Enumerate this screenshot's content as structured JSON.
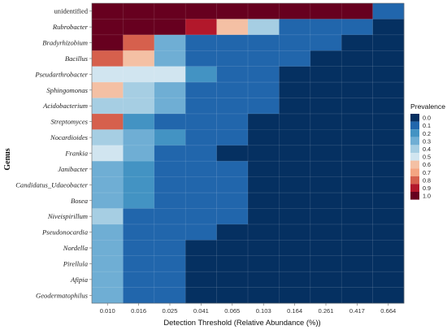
{
  "chart_data": {
    "type": "heatmap",
    "title": "",
    "xlabel": "Detection Threshold (Relative Abundance (%))",
    "ylabel": "Genus",
    "x_categories": [
      "0.010",
      "0.016",
      "0.025",
      "0.041",
      "0.065",
      "0.103",
      "0.164",
      "0.261",
      "0.417",
      "0.664"
    ],
    "y_categories": [
      "unidentified",
      "Rubrobacter",
      "Bradyrhizobium",
      "Bacillus",
      "Pseudarthrobacter",
      "Sphingomonas",
      "Acidobacterium",
      "Streptomyces",
      "Nocardioides",
      "Frankia",
      "Janibacter",
      "Candidatus_Udaeobacter",
      "Bosea",
      "Niveispirillum",
      "Pseudonocardia",
      "Nordella",
      "Pirellula",
      "Afipia",
      "Geodermatophilus"
    ],
    "values": [
      [
        1.0,
        1.0,
        1.0,
        1.0,
        1.0,
        1.0,
        1.0,
        1.0,
        1.0,
        0.05
      ],
      [
        1.0,
        1.0,
        1.0,
        0.85,
        0.6,
        0.35,
        0.1,
        0.05,
        0.05,
        0.0
      ],
      [
        1.0,
        0.75,
        0.3,
        0.05,
        0.05,
        0.05,
        0.05,
        0.05,
        0.0,
        0.0
      ],
      [
        0.75,
        0.6,
        0.3,
        0.1,
        0.05,
        0.05,
        0.05,
        0.0,
        0.0,
        0.0
      ],
      [
        0.5,
        0.45,
        0.45,
        0.15,
        0.05,
        0.05,
        0.0,
        0.0,
        0.0,
        0.0
      ],
      [
        0.6,
        0.4,
        0.25,
        0.05,
        0.05,
        0.05,
        0.0,
        0.0,
        0.0,
        0.0
      ],
      [
        0.4,
        0.4,
        0.3,
        0.1,
        0.05,
        0.05,
        0.0,
        0.0,
        0.0,
        0.0
      ],
      [
        0.75,
        0.15,
        0.05,
        0.05,
        0.05,
        0.0,
        0.0,
        0.0,
        0.0,
        0.0
      ],
      [
        0.35,
        0.3,
        0.15,
        0.05,
        0.05,
        0.0,
        0.0,
        0.0,
        0.0,
        0.0
      ],
      [
        0.5,
        0.25,
        0.05,
        0.05,
        0.0,
        0.0,
        0.0,
        0.0,
        0.0,
        0.0
      ],
      [
        0.25,
        0.2,
        0.1,
        0.05,
        0.05,
        0.0,
        0.0,
        0.0,
        0.0,
        0.0
      ],
      [
        0.25,
        0.2,
        0.1,
        0.05,
        0.05,
        0.0,
        0.0,
        0.0,
        0.0,
        0.0
      ],
      [
        0.25,
        0.2,
        0.1,
        0.05,
        0.05,
        0.0,
        0.0,
        0.0,
        0.0,
        0.0
      ],
      [
        0.35,
        0.1,
        0.05,
        0.05,
        0.05,
        0.0,
        0.0,
        0.0,
        0.0,
        0.0
      ],
      [
        0.25,
        0.1,
        0.05,
        0.05,
        0.0,
        0.0,
        0.0,
        0.0,
        0.0,
        0.0
      ],
      [
        0.25,
        0.1,
        0.05,
        0.0,
        0.0,
        0.0,
        0.0,
        0.0,
        0.0,
        0.0
      ],
      [
        0.25,
        0.1,
        0.05,
        0.0,
        0.0,
        0.0,
        0.0,
        0.0,
        0.0,
        0.0
      ],
      [
        0.25,
        0.05,
        0.05,
        0.0,
        0.0,
        0.0,
        0.0,
        0.0,
        0.0,
        0.0
      ],
      [
        0.25,
        0.05,
        0.05,
        0.0,
        0.0,
        0.0,
        0.0,
        0.0,
        0.0,
        0.0
      ]
    ],
    "legend": {
      "title": "Prevalence",
      "position": "right",
      "levels": [
        {
          "label": "0.0",
          "color": "#053061"
        },
        {
          "label": "0.1",
          "color": "#2166ac"
        },
        {
          "label": "0.2",
          "color": "#4393c3"
        },
        {
          "label": "0.3",
          "color": "#6faed4"
        },
        {
          "label": "0.4",
          "color": "#a6cee3"
        },
        {
          "label": "0.5",
          "color": "#d1e5f0"
        },
        {
          "label": "0.6",
          "color": "#f4c0a4"
        },
        {
          "label": "0.7",
          "color": "#f4a582"
        },
        {
          "label": "0.8",
          "color": "#d6604d"
        },
        {
          "label": "0.9",
          "color": "#b2182b"
        },
        {
          "label": "1.0",
          "color": "#67001f"
        }
      ]
    },
    "grid": true
  }
}
